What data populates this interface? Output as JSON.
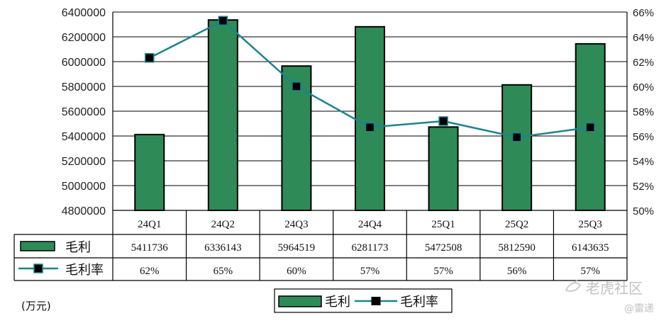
{
  "chart_data": {
    "type": "bar",
    "categories": [
      "24Q1",
      "24Q2",
      "24Q3",
      "24Q4",
      "25Q1",
      "25Q2",
      "25Q3"
    ],
    "series": [
      {
        "name": "毛利",
        "kind": "bar",
        "axis": "left",
        "values": [
          5411736,
          6336143,
          5964519,
          6281173,
          5472508,
          5812590,
          6143635
        ],
        "labels": [
          "5411736",
          "6336143",
          "5964519",
          "6281173",
          "5472508",
          "5812590",
          "6143635"
        ]
      },
      {
        "name": "毛利率",
        "kind": "line",
        "axis": "right",
        "values": [
          62.3,
          65.3,
          60.0,
          56.7,
          57.2,
          55.9,
          56.7
        ],
        "labels": [
          "62%",
          "65%",
          "60%",
          "57%",
          "57%",
          "56%",
          "57%"
        ]
      }
    ],
    "y_left": {
      "min": 4800000,
      "max": 6400000,
      "step": 200000,
      "ticks": [
        "4800000",
        "5000000",
        "5200000",
        "5400000",
        "5600000",
        "5800000",
        "6000000",
        "6200000",
        "6400000"
      ]
    },
    "y_right": {
      "min": 50,
      "max": 66,
      "step": 2,
      "ticks": [
        "50%",
        "52%",
        "54%",
        "56%",
        "58%",
        "60%",
        "62%",
        "64%",
        "66%"
      ]
    },
    "unit": "(万元)",
    "legend": {
      "position": "bottom",
      "items": [
        "毛利",
        "毛利率"
      ]
    },
    "grid": true,
    "data_table": true
  },
  "colors": {
    "bar": "#2e8b57",
    "line": "#1a8490",
    "marker": "#000000",
    "grid": "#000000"
  },
  "watermark": {
    "brand": "老虎社区",
    "author": "@雷递"
  }
}
